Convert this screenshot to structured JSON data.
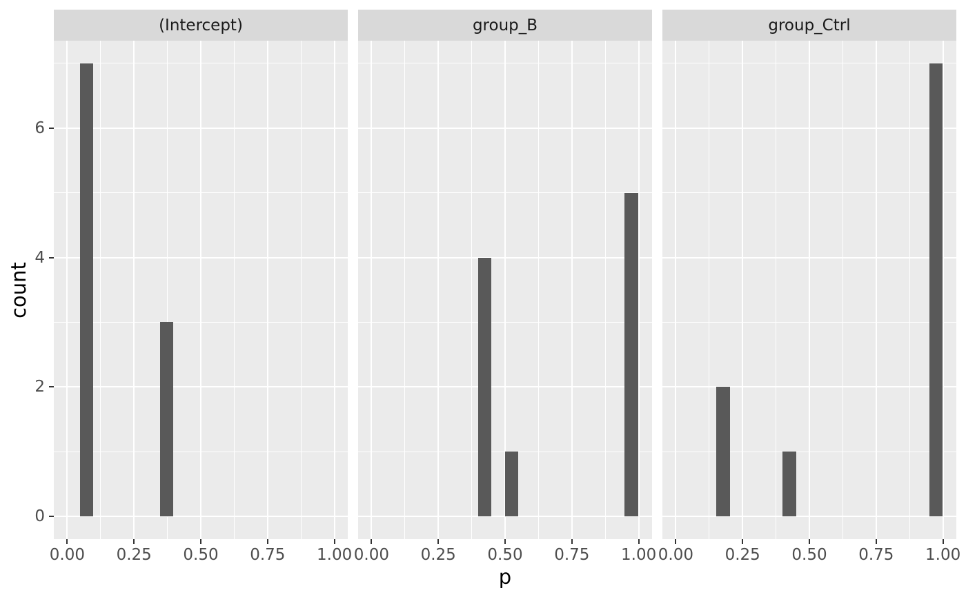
{
  "chart_data": {
    "type": "bar",
    "subtype": "faceted_histogram",
    "title": "",
    "xlabel": "p",
    "ylabel": "count",
    "xlim": [
      0,
      1
    ],
    "ylim": [
      0,
      7
    ],
    "expansion_fraction": 0.05,
    "binwidth": 0.05,
    "grid": "white major and minor gridlines on grey panel",
    "legend": "none",
    "x_ticks": [
      0,
      0.25,
      0.5,
      0.75,
      1
    ],
    "x_tick_labels": [
      "0.00",
      "0.25",
      "0.50",
      "0.75",
      "1.00"
    ],
    "x_minor_breaks": [
      0.125,
      0.375,
      0.625,
      0.875
    ],
    "y_ticks": [
      0,
      2,
      4,
      6
    ],
    "y_tick_labels": [
      "0",
      "2",
      "4",
      "6"
    ],
    "y_minor_breaks": [
      1,
      3,
      5,
      7
    ],
    "facets": [
      {
        "label": "(Intercept)",
        "bars": [
          {
            "xmin": 0.047,
            "xmax": 0.096,
            "count": 7
          },
          {
            "xmin": 0.348,
            "xmax": 0.398,
            "count": 3
          }
        ]
      },
      {
        "label": "group_B",
        "bars": [
          {
            "xmin": 0.399,
            "xmax": 0.449,
            "count": 4
          },
          {
            "xmin": 0.5,
            "xmax": 0.549,
            "count": 1
          },
          {
            "xmin": 0.948,
            "xmax": 0.998,
            "count": 5
          }
        ]
      },
      {
        "label": "group_Ctrl",
        "bars": [
          {
            "xmin": 0.151,
            "xmax": 0.202,
            "count": 2
          },
          {
            "xmin": 0.4,
            "xmax": 0.451,
            "count": 1
          },
          {
            "xmin": 0.95,
            "xmax": 0.999,
            "count": 7
          }
        ]
      }
    ],
    "colors": {
      "bar": "#595959",
      "panel_bg": "#EBEBEB",
      "strip_bg": "#D9D9D9",
      "grid": "#FFFFFF",
      "axis_text": "#4D4D4D",
      "tick_mark": "#333333",
      "strip_text": "#1A1A1A",
      "title_text": "#000000",
      "background": "#FFFFFF"
    }
  }
}
